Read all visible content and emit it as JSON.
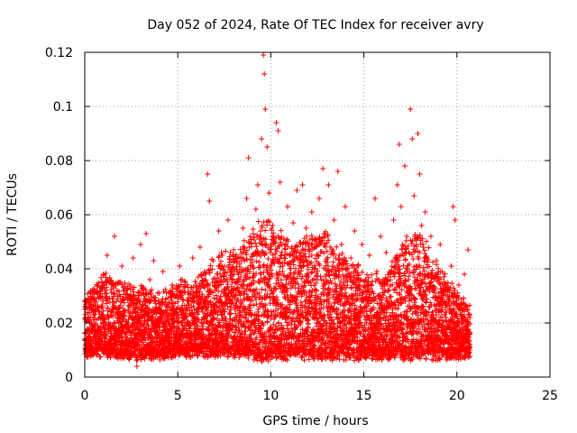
{
  "chart_data": {
    "type": "scatter",
    "title": "Day 052 of 2024, Rate Of TEC Index for receiver avry",
    "xlabel": "GPS time / hours",
    "ylabel": "ROTI / TECUs",
    "xlim": [
      0,
      25
    ],
    "ylim": [
      0,
      0.12
    ],
    "x_ticks": [
      0,
      5,
      10,
      15,
      20,
      25
    ],
    "x_tick_labels": [
      "0",
      "5",
      "10",
      "15",
      "20",
      "25"
    ],
    "y_ticks": [
      0,
      0.02,
      0.04,
      0.06,
      0.08,
      0.1,
      0.12
    ],
    "y_tick_labels": [
      "0",
      "0.02",
      "0.04",
      "0.06",
      "0.08",
      "0.1",
      "0.12"
    ],
    "grid": true,
    "marker": "+",
    "color": "#ff0000",
    "data_range_x": [
      0,
      20.7
    ],
    "series": [
      {
        "name": "ROTI",
        "points": [
          [
            0.0,
            0.014
          ],
          [
            0.1,
            0.021
          ],
          [
            0.2,
            0.011
          ],
          [
            0.3,
            0.026
          ],
          [
            0.4,
            0.017
          ],
          [
            0.5,
            0.031
          ],
          [
            0.6,
            0.009
          ],
          [
            0.7,
            0.019
          ],
          [
            0.8,
            0.024
          ],
          [
            0.9,
            0.013
          ],
          [
            1.0,
            0.038
          ],
          [
            1.1,
            0.016
          ],
          [
            1.2,
            0.045
          ],
          [
            1.3,
            0.022
          ],
          [
            1.4,
            0.011
          ],
          [
            1.5,
            0.029
          ],
          [
            1.6,
            0.052
          ],
          [
            1.7,
            0.018
          ],
          [
            1.8,
            0.035
          ],
          [
            1.9,
            0.012
          ],
          [
            2.0,
            0.041
          ],
          [
            2.1,
            0.024
          ],
          [
            2.2,
            0.015
          ],
          [
            2.3,
            0.033
          ],
          [
            2.4,
            0.008
          ],
          [
            2.5,
            0.027
          ],
          [
            2.6,
            0.044
          ],
          [
            2.7,
            0.019
          ],
          [
            2.8,
            0.004
          ],
          [
            2.9,
            0.022
          ],
          [
            3.0,
            0.049
          ],
          [
            3.1,
            0.016
          ],
          [
            3.2,
            0.028
          ],
          [
            3.3,
            0.053
          ],
          [
            3.4,
            0.012
          ],
          [
            3.5,
            0.036
          ],
          [
            3.6,
            0.021
          ],
          [
            3.7,
            0.043
          ],
          [
            3.8,
            0.017
          ],
          [
            3.9,
            0.025
          ],
          [
            4.0,
            0.031
          ],
          [
            4.1,
            0.014
          ],
          [
            4.2,
            0.039
          ],
          [
            4.3,
            0.022
          ],
          [
            4.4,
            0.009
          ],
          [
            4.5,
            0.027
          ],
          [
            4.6,
            0.018
          ],
          [
            4.7,
            0.034
          ],
          [
            4.8,
            0.023
          ],
          [
            4.9,
            0.013
          ],
          [
            5.0,
            0.029
          ],
          [
            5.1,
            0.041
          ],
          [
            5.2,
            0.016
          ],
          [
            5.3,
            0.024
          ],
          [
            5.4,
            0.035
          ],
          [
            5.5,
            0.011
          ],
          [
            5.6,
            0.027
          ],
          [
            5.7,
            0.019
          ],
          [
            5.8,
            0.044
          ],
          [
            5.9,
            0.022
          ],
          [
            6.0,
            0.031
          ],
          [
            6.1,
            0.015
          ],
          [
            6.2,
            0.048
          ],
          [
            6.3,
            0.026
          ],
          [
            6.4,
            0.012
          ],
          [
            6.5,
            0.038
          ],
          [
            6.6,
            0.075
          ],
          [
            6.7,
            0.065
          ],
          [
            6.8,
            0.021
          ],
          [
            6.9,
            0.043
          ],
          [
            7.0,
            0.017
          ],
          [
            7.1,
            0.033
          ],
          [
            7.2,
            0.054
          ],
          [
            7.3,
            0.024
          ],
          [
            7.4,
            0.011
          ],
          [
            7.5,
            0.041
          ],
          [
            7.6,
            0.029
          ],
          [
            7.7,
            0.058
          ],
          [
            7.8,
            0.018
          ],
          [
            7.9,
            0.036
          ],
          [
            8.0,
            0.047
          ],
          [
            8.1,
            0.022
          ],
          [
            8.2,
            0.013
          ],
          [
            8.3,
            0.039
          ],
          [
            8.4,
            0.028
          ],
          [
            8.5,
            0.055
          ],
          [
            8.6,
            0.017
          ],
          [
            8.7,
            0.066
          ],
          [
            8.8,
            0.081
          ],
          [
            8.9,
            0.032
          ],
          [
            9.0,
            0.045
          ],
          [
            9.1,
            0.019
          ],
          [
            9.2,
            0.062
          ],
          [
            9.3,
            0.071
          ],
          [
            9.4,
            0.026
          ],
          [
            9.5,
            0.088
          ],
          [
            9.6,
            0.119
          ],
          [
            9.65,
            0.112
          ],
          [
            9.7,
            0.099
          ],
          [
            9.8,
            0.085
          ],
          [
            9.9,
            0.068
          ],
          [
            10.0,
            0.041
          ],
          [
            10.1,
            0.056
          ],
          [
            10.2,
            0.029
          ],
          [
            10.3,
            0.094
          ],
          [
            10.4,
            0.091
          ],
          [
            10.5,
            0.072
          ],
          [
            10.6,
            0.034
          ],
          [
            10.7,
            0.051
          ],
          [
            10.8,
            0.022
          ],
          [
            10.9,
            0.063
          ],
          [
            11.0,
            0.045
          ],
          [
            11.1,
            0.018
          ],
          [
            11.2,
            0.057
          ],
          [
            11.3,
            0.033
          ],
          [
            11.4,
            0.069
          ],
          [
            11.5,
            0.024
          ],
          [
            11.6,
            0.049
          ],
          [
            11.7,
            0.071
          ],
          [
            11.8,
            0.031
          ],
          [
            11.9,
            0.055
          ],
          [
            12.0,
            0.014
          ],
          [
            12.1,
            0.042
          ],
          [
            12.2,
            0.061
          ],
          [
            12.3,
            0.027
          ],
          [
            12.4,
            0.048
          ],
          [
            12.5,
            0.036
          ],
          [
            12.6,
            0.066
          ],
          [
            12.7,
            0.019
          ],
          [
            12.8,
            0.077
          ],
          [
            12.9,
            0.052
          ],
          [
            13.0,
            0.038
          ],
          [
            13.1,
            0.071
          ],
          [
            13.2,
            0.025
          ],
          [
            13.3,
            0.046
          ],
          [
            13.4,
            0.058
          ],
          [
            13.5,
            0.016
          ],
          [
            13.6,
            0.076
          ],
          [
            13.7,
            0.034
          ],
          [
            13.8,
            0.049
          ],
          [
            13.9,
            0.022
          ],
          [
            14.0,
            0.063
          ],
          [
            14.1,
            0.037
          ],
          [
            14.2,
            0.012
          ],
          [
            14.3,
            0.044
          ],
          [
            14.4,
            0.029
          ],
          [
            14.5,
            0.054
          ],
          [
            14.6,
            0.018
          ],
          [
            14.7,
            0.041
          ],
          [
            14.8,
            0.026
          ],
          [
            14.9,
            0.049
          ],
          [
            15.0,
            0.015
          ],
          [
            15.1,
            0.036
          ],
          [
            15.2,
            0.022
          ],
          [
            15.3,
            0.045
          ],
          [
            15.4,
            0.031
          ],
          [
            15.5,
            0.017
          ],
          [
            15.6,
            0.066
          ],
          [
            15.7,
            0.039
          ],
          [
            15.8,
            0.024
          ],
          [
            15.9,
            0.052
          ],
          [
            16.0,
            0.013
          ],
          [
            16.1,
            0.034
          ],
          [
            16.2,
            0.046
          ],
          [
            16.3,
            0.021
          ],
          [
            16.4,
            0.038
          ],
          [
            16.5,
            0.027
          ],
          [
            16.6,
            0.058
          ],
          [
            16.7,
            0.044
          ],
          [
            16.8,
            0.071
          ],
          [
            16.9,
            0.086
          ],
          [
            17.0,
            0.063
          ],
          [
            17.1,
            0.029
          ],
          [
            17.2,
            0.078
          ],
          [
            17.3,
            0.052
          ],
          [
            17.4,
            0.036
          ],
          [
            17.5,
            0.099
          ],
          [
            17.6,
            0.088
          ],
          [
            17.7,
            0.067
          ],
          [
            17.8,
            0.041
          ],
          [
            17.9,
            0.09
          ],
          [
            18.0,
            0.075
          ],
          [
            18.1,
            0.056
          ],
          [
            18.2,
            0.032
          ],
          [
            18.3,
            0.061
          ],
          [
            18.4,
            0.044
          ],
          [
            18.5,
            0.026
          ],
          [
            18.6,
            0.052
          ],
          [
            18.7,
            0.037
          ],
          [
            18.8,
            0.018
          ],
          [
            18.9,
            0.043
          ],
          [
            19.0,
            0.029
          ],
          [
            19.1,
            0.049
          ],
          [
            19.2,
            0.021
          ],
          [
            19.3,
            0.037
          ],
          [
            19.4,
            0.015
          ],
          [
            19.5,
            0.032
          ],
          [
            19.6,
            0.024
          ],
          [
            19.7,
            0.041
          ],
          [
            19.8,
            0.063
          ],
          [
            19.9,
            0.058
          ],
          [
            20.0,
            0.019
          ],
          [
            20.1,
            0.034
          ],
          [
            20.2,
            0.012
          ],
          [
            20.3,
            0.027
          ],
          [
            20.4,
            0.038
          ],
          [
            20.5,
            0.016
          ],
          [
            20.6,
            0.047
          ],
          [
            20.7,
            0.022
          ]
        ]
      }
    ],
    "dense_band": {
      "x_start": 0.0,
      "x_end": 20.7,
      "x_step": 0.02,
      "seed": 52,
      "envelope": [
        [
          0.0,
          0.009,
          0.03
        ],
        [
          1.0,
          0.009,
          0.038
        ],
        [
          2.0,
          0.008,
          0.034
        ],
        [
          3.0,
          0.008,
          0.033
        ],
        [
          4.0,
          0.008,
          0.03
        ],
        [
          5.0,
          0.009,
          0.034
        ],
        [
          6.0,
          0.009,
          0.036
        ],
        [
          7.0,
          0.009,
          0.044
        ],
        [
          8.0,
          0.009,
          0.047
        ],
        [
          9.0,
          0.008,
          0.053
        ],
        [
          9.5,
          0.007,
          0.06
        ],
        [
          10.0,
          0.008,
          0.056
        ],
        [
          11.0,
          0.008,
          0.05
        ],
        [
          12.0,
          0.008,
          0.052
        ],
        [
          13.0,
          0.008,
          0.054
        ],
        [
          14.0,
          0.008,
          0.044
        ],
        [
          15.0,
          0.008,
          0.038
        ],
        [
          16.0,
          0.008,
          0.036
        ],
        [
          17.0,
          0.008,
          0.05
        ],
        [
          18.0,
          0.008,
          0.055
        ],
        [
          19.0,
          0.008,
          0.04
        ],
        [
          20.0,
          0.008,
          0.032
        ],
        [
          20.7,
          0.009,
          0.025
        ]
      ]
    }
  }
}
